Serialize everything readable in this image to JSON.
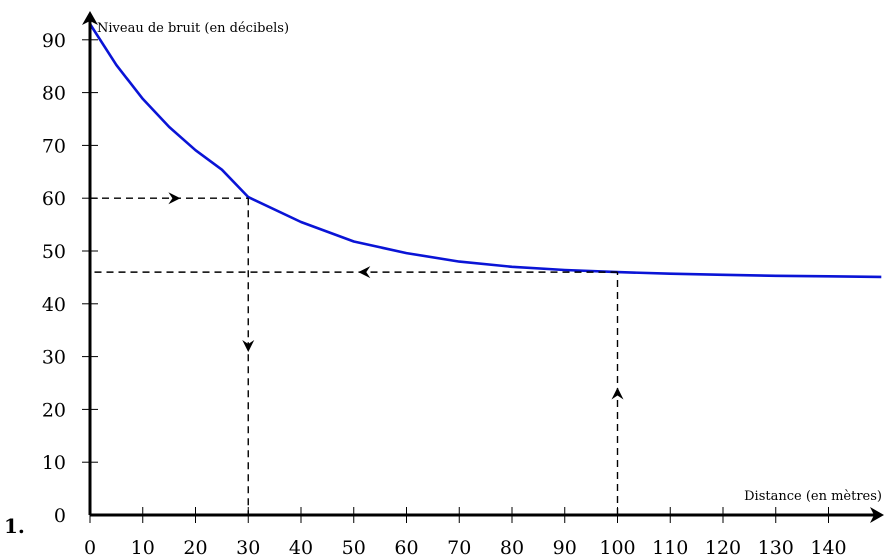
{
  "question_label": "1.",
  "chart_data": {
    "type": "line",
    "ylabel": "Niveau de bruit (en décibels)",
    "xlabel": "Distance (en mètres)",
    "x_ticks": [
      0,
      10,
      20,
      30,
      40,
      50,
      60,
      70,
      80,
      90,
      100,
      110,
      120,
      130,
      140
    ],
    "y_ticks": [
      0,
      10,
      20,
      30,
      40,
      50,
      60,
      70,
      80,
      90
    ],
    "xlim": [
      0,
      150
    ],
    "ylim": [
      0,
      95
    ],
    "series": [
      {
        "color": "#0a14d6",
        "x": [
          0,
          5,
          10,
          15,
          20,
          25,
          30,
          40,
          50,
          60,
          70,
          80,
          90,
          100,
          110,
          120,
          130,
          140,
          150
        ],
        "y": [
          93,
          85.2,
          78.8,
          73.5,
          69.1,
          65.4,
          60.2,
          55.5,
          51.8,
          49.6,
          48.0,
          47.0,
          46.4,
          46.0,
          45.7,
          45.5,
          45.3,
          45.2,
          45.1
        ]
      }
    ],
    "annotations": [
      {
        "type": "dashed-h",
        "y": 60,
        "x_from": 0,
        "x_to": 30,
        "arrow_at_x": 16,
        "arrow_dir": "right"
      },
      {
        "type": "dashed-v",
        "x": 30,
        "y_from": 60,
        "y_to": 0,
        "arrow_at_y": 32,
        "arrow_dir": "down"
      },
      {
        "type": "dashed-v",
        "x": 100,
        "y_from": 0,
        "y_to": 46,
        "arrow_at_y": 23,
        "arrow_dir": "up"
      },
      {
        "type": "dashed-h",
        "y": 46,
        "x_from": 100,
        "x_to": 0,
        "arrow_at_x": 52,
        "arrow_dir": "left"
      }
    ],
    "grid": false,
    "legend": "none"
  }
}
